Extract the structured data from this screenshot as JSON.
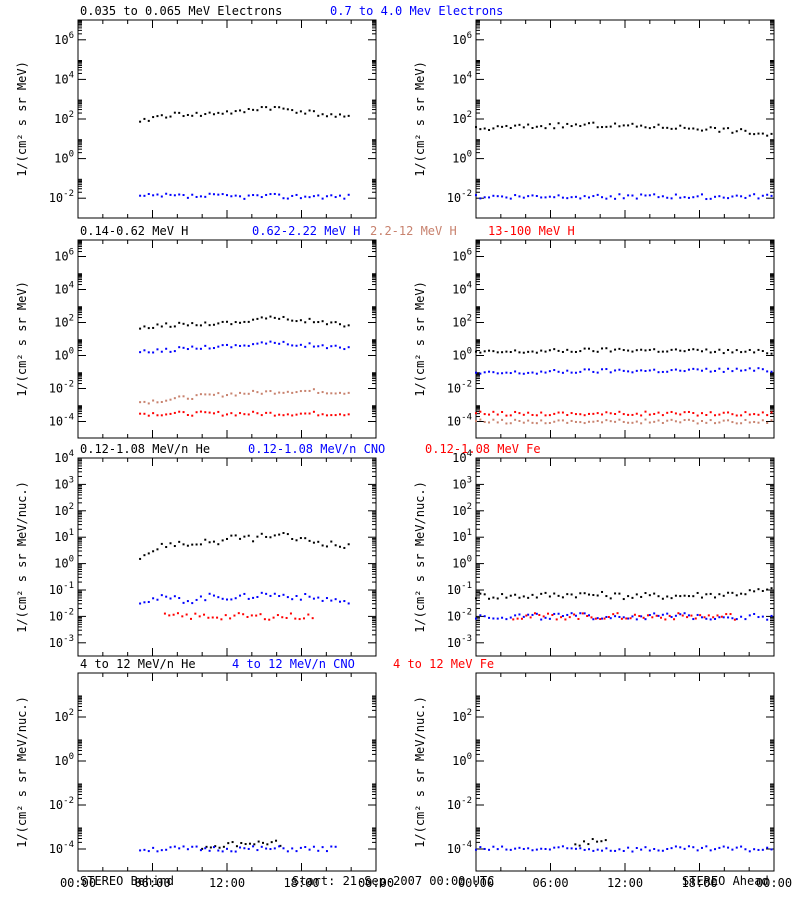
{
  "footer": {
    "left": "STEREO Behind",
    "center": "Start: 21-Sep-2007 00:00 UTC",
    "right": "STEREO Ahead"
  },
  "x_ticks": [
    "00:00",
    "06:00",
    "12:00",
    "18:00",
    "00:00"
  ],
  "rows": [
    {
      "ylabel": "1/(cm² s sr MeV)",
      "titles": [
        {
          "text": "0.035 to 0.065 MeV Electrons",
          "color": "#000000"
        },
        {
          "text": "0.7 to 4.0 Mev Electrons",
          "color": "#0000ff"
        }
      ],
      "y_exp_range": [
        -3,
        7
      ],
      "y_tick_labels": [
        "10^6",
        "10^4",
        "10^2",
        "10^0",
        "10^-2"
      ]
    },
    {
      "ylabel": "1/(cm² s sr MeV)",
      "titles": [
        {
          "text": "0.14-0.62 MeV H",
          "color": "#000000"
        },
        {
          "text": "0.62-2.22 MeV H",
          "color": "#0000ff"
        },
        {
          "text": "2.2-12 MeV H",
          "color": "#c8826e"
        },
        {
          "text": "13-100 MeV H",
          "color": "#ff0000"
        }
      ],
      "y_exp_range": [
        -5,
        7
      ],
      "y_tick_labels": [
        "10^6",
        "10^4",
        "10^2",
        "10^0",
        "10^-2",
        "10^-4"
      ]
    },
    {
      "ylabel": "1/(cm² s sr MeV/nuc.)",
      "titles": [
        {
          "text": "0.12-1.08 MeV/n He",
          "color": "#000000"
        },
        {
          "text": "0.12-1.08 MeV/n CNO",
          "color": "#0000ff"
        },
        {
          "text": "0.12-1.08 MeV Fe",
          "color": "#ff0000"
        }
      ],
      "y_exp_range": [
        -3.5,
        4
      ],
      "y_tick_labels": [
        "10^4",
        "10^3",
        "10^2",
        "10^1",
        "10^0",
        "10^-1",
        "10^-2",
        "10^-3"
      ]
    },
    {
      "ylabel": "1/(cm² s sr MeV/nuc.)",
      "titles": [
        {
          "text": "4 to 12 MeV/n He",
          "color": "#000000"
        },
        {
          "text": "4 to 12 MeV/n CNO",
          "color": "#0000ff"
        },
        {
          "text": "4 to 12 MeV Fe",
          "color": "#ff0000"
        }
      ],
      "y_exp_range": [
        -5,
        4
      ],
      "y_tick_labels": [
        "10^2",
        "10^0",
        "10^-2",
        "10^-4"
      ]
    }
  ],
  "chart_data": [
    {
      "type": "scatter",
      "spacecraft": "STEREO Behind",
      "x_unit": "hours since start",
      "xlim": [
        0,
        24
      ],
      "y_scale": "log",
      "series": [
        {
          "name": "0.035 to 0.065 MeV Electrons",
          "color": "#000000",
          "x": [
            5,
            6,
            7,
            8,
            9,
            10,
            11,
            12,
            13,
            14,
            15,
            16,
            17,
            18,
            19,
            20,
            21,
            22
          ],
          "y": [
            60,
            120,
            150,
            170,
            180,
            160,
            200,
            220,
            210,
            300,
            400,
            350,
            300,
            250,
            200,
            160,
            130,
            110
          ]
        },
        {
          "name": "0.7 to 4.0 Mev Electrons",
          "color": "#0000ff",
          "x": [
            5,
            7,
            9,
            11,
            13,
            15,
            17,
            19,
            21,
            22
          ],
          "y": [
            0.012,
            0.013,
            0.012,
            0.013,
            0.012,
            0.013,
            0.012,
            0.013,
            0.012,
            0.012
          ]
        }
      ]
    },
    {
      "type": "scatter",
      "spacecraft": "STEREO Ahead",
      "x_unit": "hours since start",
      "xlim": [
        0,
        24
      ],
      "y_scale": "log",
      "series": [
        {
          "name": "0.035 to 0.065 MeV Electrons",
          "color": "#000000",
          "x": [
            0,
            3,
            6,
            9,
            12,
            15,
            18,
            21,
            24
          ],
          "y": [
            30,
            40,
            45,
            50,
            45,
            40,
            35,
            25,
            15
          ]
        },
        {
          "name": "0.7 to 4.0 Mev Electrons",
          "color": "#0000ff",
          "x": [
            0,
            4,
            8,
            12,
            16,
            20,
            24
          ],
          "y": [
            0.012,
            0.012,
            0.013,
            0.012,
            0.012,
            0.012,
            0.012
          ]
        }
      ]
    },
    {
      "type": "scatter",
      "spacecraft": "STEREO Behind",
      "x_unit": "hours since start",
      "xlim": [
        0,
        24
      ],
      "y_scale": "log",
      "series": [
        {
          "name": "0.14-0.62 MeV H",
          "color": "#000000",
          "x": [
            5,
            7,
            9,
            11,
            13,
            14,
            15,
            17,
            19,
            21,
            22
          ],
          "y": [
            40,
            70,
            80,
            90,
            100,
            150,
            200,
            160,
            120,
            80,
            50
          ]
        },
        {
          "name": "0.62-2.22 MeV H",
          "color": "#0000ff",
          "x": [
            5,
            7,
            9,
            11,
            13,
            14,
            15,
            17,
            19,
            21,
            22
          ],
          "y": [
            1.5,
            2,
            3,
            3.5,
            4,
            5,
            6,
            5,
            4,
            3,
            2.5
          ]
        },
        {
          "name": "2.2-12 MeV H",
          "color": "#c8826e",
          "x": [
            5,
            7,
            9,
            11,
            13,
            15,
            17,
            19,
            21,
            22
          ],
          "y": [
            0.0015,
            0.002,
            0.003,
            0.004,
            0.005,
            0.006,
            0.007,
            0.007,
            0.006,
            0.006
          ]
        },
        {
          "name": "13-100 MeV H",
          "color": "#ff0000",
          "x": [
            5,
            8,
            11,
            14,
            17,
            20,
            22
          ],
          "y": [
            0.0003,
            0.0003,
            0.0003,
            0.0003,
            0.0003,
            0.0003,
            0.0003
          ]
        }
      ]
    },
    {
      "type": "scatter",
      "spacecraft": "STEREO Ahead",
      "x_unit": "hours since start",
      "xlim": [
        0,
        24
      ],
      "y_scale": "log",
      "series": [
        {
          "name": "0.14-0.62 MeV H",
          "color": "#000000",
          "x": [
            0,
            4,
            8,
            12,
            16,
            20,
            24
          ],
          "y": [
            1.5,
            1.7,
            2,
            2.2,
            2,
            1.8,
            1.6
          ]
        },
        {
          "name": "0.62-2.22 MeV H",
          "color": "#0000ff",
          "x": [
            0,
            4,
            8,
            12,
            16,
            20,
            24
          ],
          "y": [
            0.08,
            0.09,
            0.11,
            0.12,
            0.12,
            0.13,
            0.13
          ]
        },
        {
          "name": "2.2-12 MeV H",
          "color": "#c8826e",
          "x": [
            0,
            6,
            12,
            18,
            24
          ],
          "y": [
            0.0001,
            0.0001,
            0.0001,
            0.0001,
            0.0001
          ]
        },
        {
          "name": "13-100 MeV H",
          "color": "#ff0000",
          "x": [
            0,
            6,
            12,
            18,
            24
          ],
          "y": [
            0.0003,
            0.0003,
            0.0003,
            0.0003,
            0.0003
          ]
        }
      ]
    },
    {
      "type": "scatter",
      "spacecraft": "STEREO Behind",
      "x_unit": "hours since start",
      "xlim": [
        0,
        24
      ],
      "y_scale": "log",
      "series": [
        {
          "name": "0.12-1.08 MeV/n He",
          "color": "#000000",
          "x": [
            5,
            6,
            7,
            8,
            9,
            10,
            11,
            12,
            13,
            14,
            15,
            16,
            17,
            18,
            19,
            20,
            21,
            22
          ],
          "y": [
            2,
            3,
            5,
            6,
            5,
            7,
            6,
            8,
            10,
            9,
            11,
            12,
            10,
            8,
            7,
            6,
            5,
            4
          ]
        },
        {
          "name": "0.12-1.08 MeV/n CNO",
          "color": "#0000ff",
          "x": [
            5,
            7,
            9,
            11,
            13,
            15,
            17,
            19,
            21,
            22
          ],
          "y": [
            0.04,
            0.05,
            0.04,
            0.06,
            0.05,
            0.07,
            0.06,
            0.05,
            0.04,
            0.03
          ]
        },
        {
          "name": "0.12-1.08 MeV Fe",
          "color": "#ff0000",
          "x": [
            7,
            10,
            13,
            16,
            19
          ],
          "y": [
            0.01,
            0.01,
            0.01,
            0.01,
            0.01
          ]
        }
      ]
    },
    {
      "type": "scatter",
      "spacecraft": "STEREO Ahead",
      "x_unit": "hours since start",
      "xlim": [
        0,
        24
      ],
      "y_scale": "log",
      "series": [
        {
          "name": "0.12-1.08 MeV/n He",
          "color": "#000000",
          "x": [
            0,
            4,
            8,
            12,
            16,
            20,
            24
          ],
          "y": [
            0.06,
            0.06,
            0.07,
            0.06,
            0.06,
            0.07,
            0.1
          ]
        },
        {
          "name": "0.12-1.08 MeV/n CNO",
          "color": "#0000ff",
          "x": [
            0,
            6,
            12,
            18,
            24
          ],
          "y": [
            0.01,
            0.01,
            0.01,
            0.01,
            0.01
          ]
        },
        {
          "name": "0.12-1.08 MeV Fe",
          "color": "#ff0000",
          "x": [
            3,
            9,
            15,
            21
          ],
          "y": [
            0.01,
            0.01,
            0.01,
            0.01
          ]
        }
      ]
    },
    {
      "type": "scatter",
      "spacecraft": "STEREO Behind",
      "x_unit": "hours since start",
      "xlim": [
        0,
        24
      ],
      "y_scale": "log",
      "series": [
        {
          "name": "4 to 12 MeV/n He",
          "color": "#000000",
          "x": [
            10,
            13.5,
            16.5
          ],
          "y": [
            0.00012,
            0.00018,
            0.00018
          ]
        },
        {
          "name": "4 to 12 MeV/n CNO",
          "color": "#0000ff",
          "x": [
            5,
            8,
            12,
            15,
            18,
            21
          ],
          "y": [
            0.0001,
            0.0001,
            0.0001,
            0.0001,
            0.0001,
            0.0001
          ]
        },
        {
          "name": "4 to 12 MeV Fe",
          "color": "#ff0000",
          "x": [],
          "y": []
        }
      ]
    },
    {
      "type": "scatter",
      "spacecraft": "STEREO Ahead",
      "x_unit": "hours since start",
      "xlim": [
        0,
        24
      ],
      "y_scale": "log",
      "series": [
        {
          "name": "4 to 12 MeV/n He",
          "color": "#000000",
          "x": [
            8,
            10.5
          ],
          "y": [
            0.00018,
            0.00025
          ]
        },
        {
          "name": "4 to 12 MeV/n CNO",
          "color": "#0000ff",
          "x": [
            0,
            4,
            8,
            12,
            16,
            20,
            24
          ],
          "y": [
            0.0001,
            0.0001,
            0.0001,
            0.0001,
            0.0001,
            0.0001,
            0.0001
          ]
        },
        {
          "name": "4 to 12 MeV Fe",
          "color": "#ff0000",
          "x": [],
          "y": []
        }
      ]
    }
  ]
}
